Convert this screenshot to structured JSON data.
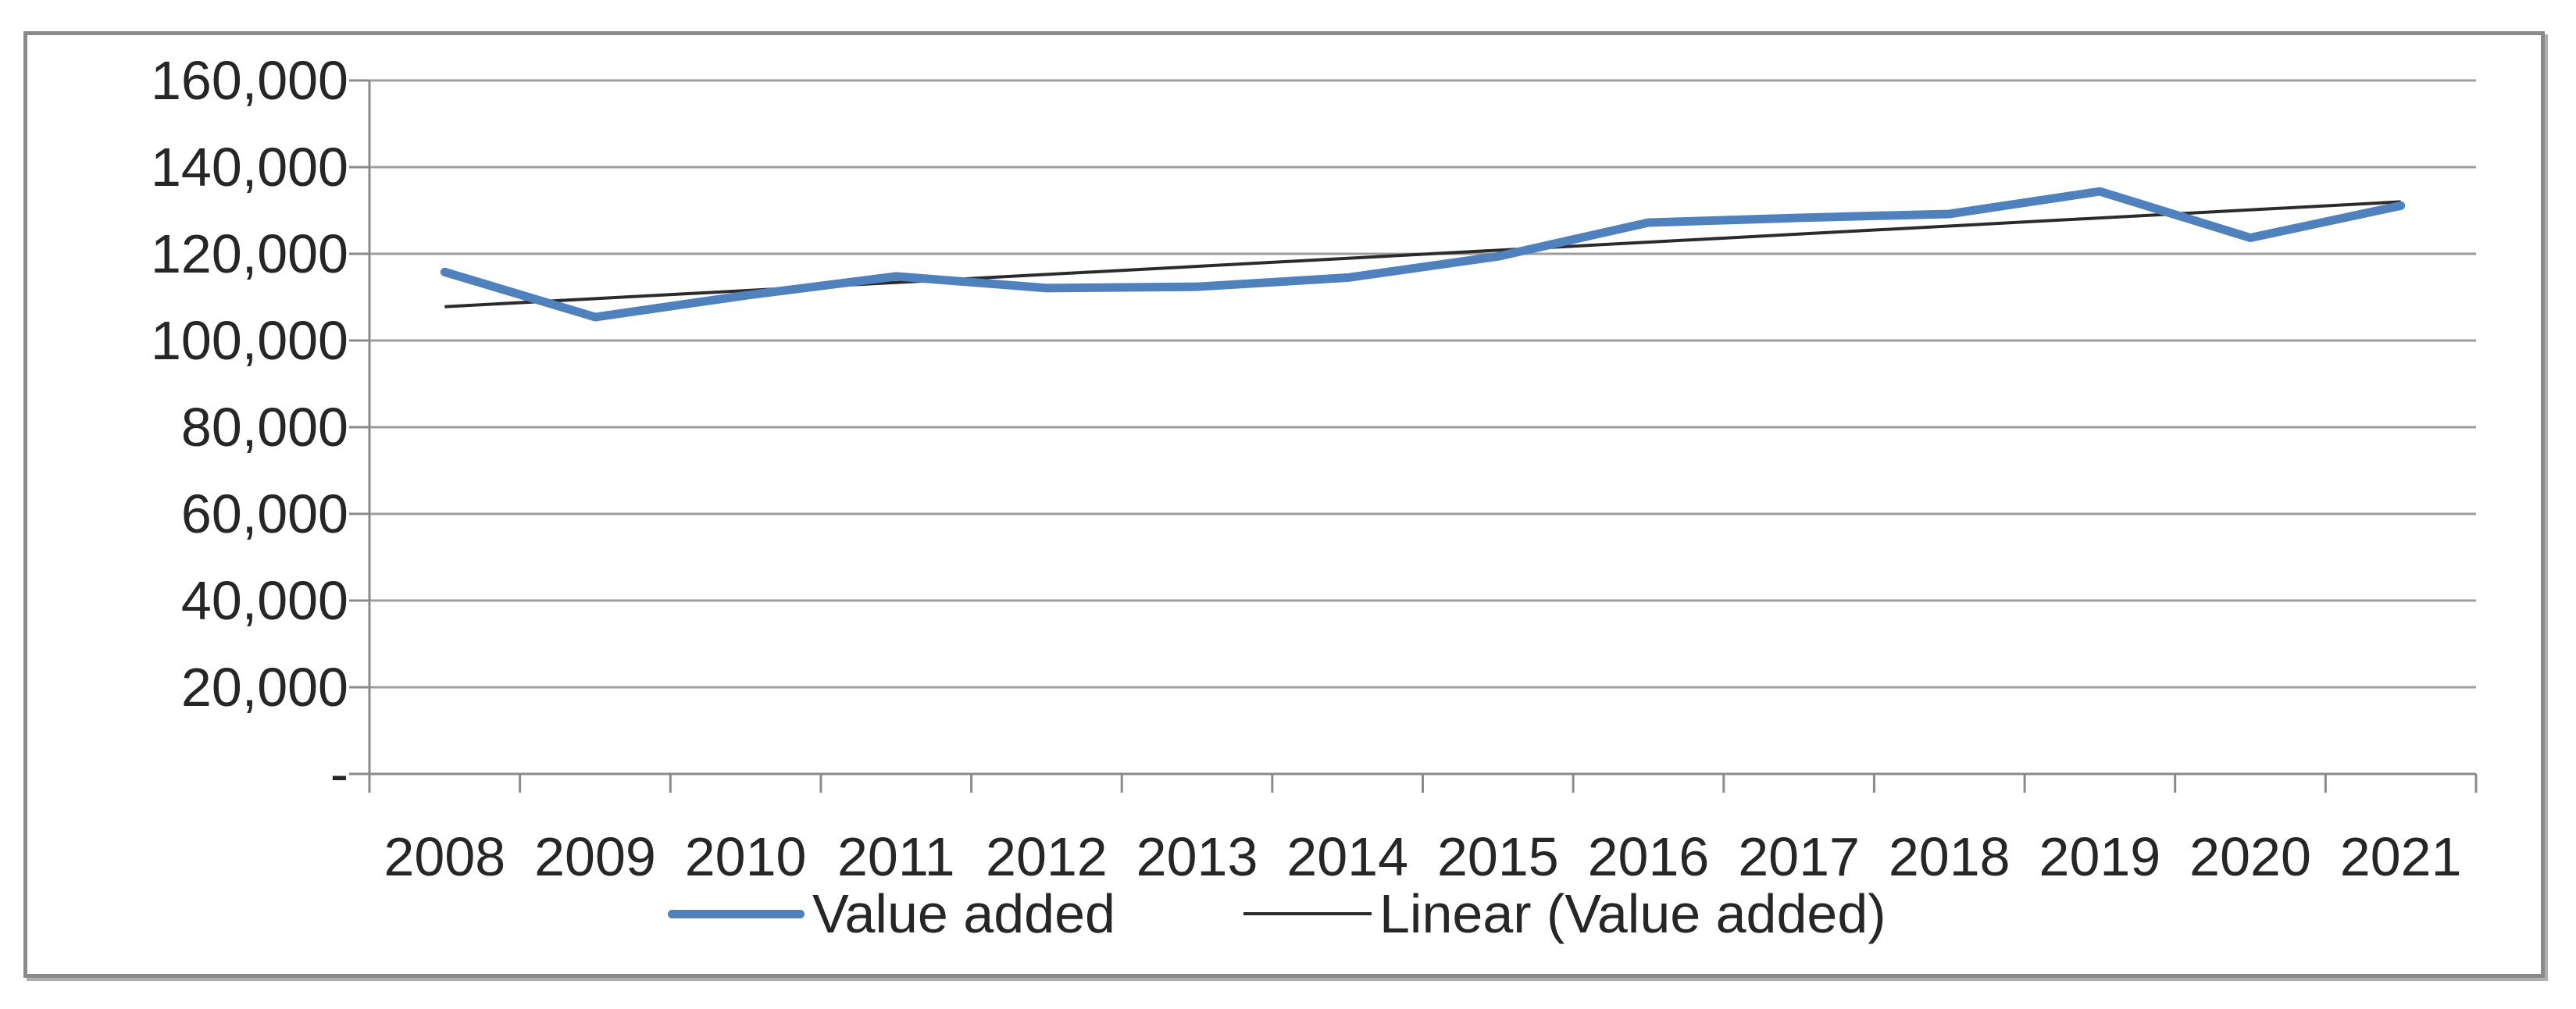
{
  "chart_data": {
    "type": "line",
    "title": "",
    "xlabel": "",
    "ylabel": "",
    "categories": [
      "2008",
      "2009",
      "2010",
      "2011",
      "2012",
      "2013",
      "2014",
      "2015",
      "2016",
      "2017",
      "2018",
      "2019",
      "2020",
      "2021"
    ],
    "series": [
      {
        "name": "Value added",
        "color": "#4F81BD",
        "style": "thick-solid",
        "values": [
          115800,
          105400,
          110400,
          114800,
          112100,
          112400,
          114500,
          119400,
          127200,
          128300,
          129200,
          134400,
          123700,
          131100
        ]
      },
      {
        "name": "Linear (Value added)",
        "color": "#2b2b2b",
        "style": "thin-solid",
        "type": "linear-trendline",
        "endpoints": [
          107800,
          132000
        ]
      }
    ],
    "ylim": [
      0,
      160000
    ],
    "ytick_interval": 20000,
    "ytick_labels": [
      "160,000",
      "140,000",
      "120,000",
      "100,000",
      "80,000",
      "60,000",
      "40,000",
      "20,000",
      "-"
    ],
    "grid": true,
    "legend_position": "bottom"
  },
  "colors": {
    "series_blue": "#4F81BD",
    "trendline": "#2b2b2b",
    "gridline": "#9d9d9d",
    "axis": "#8a8a8a",
    "text": "#262626",
    "frame_border": "#8a8a8a",
    "background": "#ffffff"
  }
}
